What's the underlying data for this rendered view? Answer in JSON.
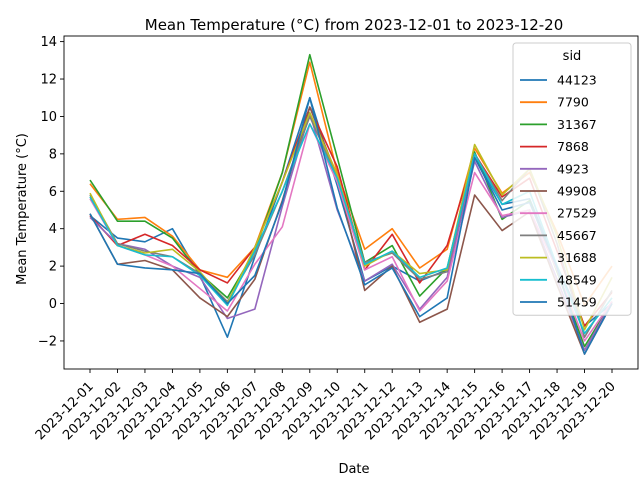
{
  "chart_data": {
    "type": "line",
    "title": "Mean Temperature (°C) from 2023-12-01 to 2023-12-20",
    "xlabel": "Date",
    "ylabel": "Mean Temperature (°C)",
    "ylim": [
      -3.5,
      14.3
    ],
    "yticks": [
      -2,
      0,
      2,
      4,
      6,
      8,
      10,
      12,
      14
    ],
    "grid": false,
    "legend_title": "sid",
    "legend_position": "top-right",
    "categories": [
      "2023-12-01",
      "2023-12-02",
      "2023-12-03",
      "2023-12-04",
      "2023-12-05",
      "2023-12-06",
      "2023-12-07",
      "2023-12-08",
      "2023-12-09",
      "2023-12-10",
      "2023-12-11",
      "2023-12-12",
      "2023-12-13",
      "2023-12-14",
      "2023-12-15",
      "2023-12-16",
      "2023-12-17",
      "2023-12-18",
      "2023-12-19",
      "2023-12-20"
    ],
    "series": [
      {
        "name": "44123",
        "color": "#1f77b4",
        "values": [
          4.7,
          3.5,
          3.3,
          4.0,
          1.5,
          -1.8,
          2.5,
          6.5,
          11.0,
          6.3,
          1.2,
          2.0,
          1.2,
          1.8,
          7.8,
          5.3,
          5.6,
          2.0,
          -1.2,
          0.0
        ]
      },
      {
        "name": "7790",
        "color": "#ff7f0e",
        "values": [
          6.4,
          4.5,
          4.6,
          3.6,
          1.8,
          1.4,
          3.0,
          7.0,
          12.9,
          7.0,
          2.9,
          4.0,
          1.9,
          2.9,
          8.3,
          5.9,
          7.0,
          3.8,
          -0.1,
          2.0
        ]
      },
      {
        "name": "31367",
        "color": "#2ca02c",
        "values": [
          6.6,
          4.4,
          4.4,
          3.5,
          1.6,
          0.3,
          2.8,
          7.0,
          13.3,
          7.8,
          2.2,
          3.1,
          0.4,
          1.9,
          8.1,
          4.5,
          5.5,
          1.7,
          -2.3,
          0.1
        ]
      },
      {
        "name": "7868",
        "color": "#d62728",
        "values": [
          4.7,
          3.1,
          3.7,
          3.1,
          1.8,
          1.1,
          3.0,
          6.5,
          10.5,
          7.3,
          1.8,
          3.7,
          1.1,
          3.1,
          8.0,
          5.7,
          6.7,
          2.8,
          -1.2,
          0.6
        ]
      },
      {
        "name": "4923",
        "color": "#9467bd",
        "values": [
          4.6,
          3.2,
          2.9,
          2.0,
          1.4,
          -0.8,
          -0.3,
          5.2,
          10.2,
          5.0,
          1.2,
          2.1,
          -0.3,
          1.4,
          7.6,
          4.6,
          5.0,
          1.3,
          -2.5,
          0.1
        ]
      },
      {
        "name": "49908",
        "color": "#8c564b",
        "values": [
          4.8,
          2.1,
          2.3,
          1.8,
          0.3,
          -0.7,
          1.3,
          5.5,
          10.5,
          6.8,
          0.7,
          2.0,
          -1.0,
          -0.3,
          5.8,
          3.9,
          4.9,
          1.0,
          -2.7,
          0.0
        ]
      },
      {
        "name": "27529",
        "color": "#e377c2",
        "values": [
          5.6,
          3.1,
          2.6,
          2.0,
          0.8,
          -0.4,
          2.1,
          4.1,
          9.6,
          6.5,
          1.8,
          2.5,
          -0.4,
          1.2,
          7.0,
          4.7,
          5.0,
          1.8,
          -2.0,
          0.1
        ]
      },
      {
        "name": "45667",
        "color": "#7f7f7f",
        "values": [
          5.8,
          3.2,
          2.8,
          2.5,
          1.6,
          0.1,
          2.6,
          6.0,
          10.0,
          6.7,
          2.2,
          2.7,
          1.3,
          1.7,
          8.0,
          5.5,
          7.2,
          3.2,
          -1.8,
          0.7
        ]
      },
      {
        "name": "31688",
        "color": "#bcbd22",
        "values": [
          5.9,
          3.1,
          2.7,
          2.9,
          1.7,
          0.0,
          3.0,
          6.5,
          10.2,
          6.9,
          2.0,
          2.8,
          1.6,
          1.8,
          8.5,
          5.8,
          7.2,
          3.6,
          -1.4,
          1.4
        ]
      },
      {
        "name": "48549",
        "color": "#17becf",
        "values": [
          5.7,
          3.1,
          2.6,
          2.5,
          1.5,
          -0.1,
          2.8,
          6.0,
          9.6,
          6.7,
          2.1,
          2.8,
          1.4,
          1.9,
          8.0,
          5.3,
          6.0,
          2.0,
          -1.6,
          0.3
        ]
      },
      {
        "name": "51459",
        "color": "#1f77b4",
        "values": [
          4.8,
          2.1,
          1.9,
          1.8,
          1.6,
          0.0,
          1.5,
          5.4,
          11.0,
          5.1,
          1.0,
          1.9,
          -0.7,
          0.3,
          7.8,
          5.0,
          5.4,
          1.9,
          -2.7,
          0.0
        ]
      }
    ]
  }
}
